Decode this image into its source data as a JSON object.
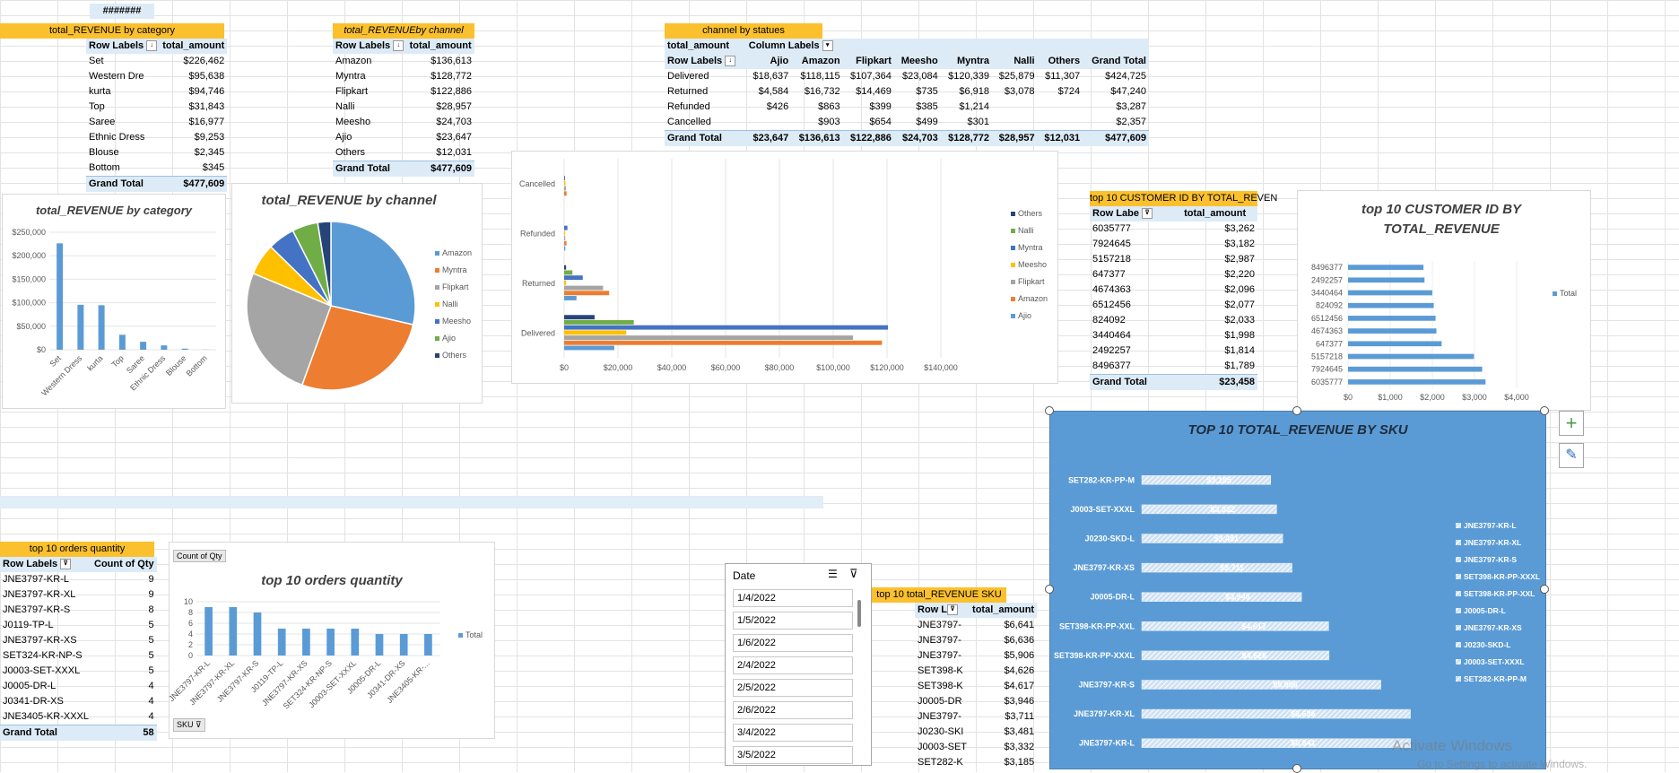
{
  "top_cell": "#######",
  "category_table": {
    "title": "total_REVENUE by category",
    "header_row_labels": "Row Labels",
    "header_value": "total_amount",
    "rows": [
      {
        "label": "Set",
        "value": "$226,462"
      },
      {
        "label": "Western Dre",
        "value": "$95,638"
      },
      {
        "label": "kurta",
        "value": "$94,746"
      },
      {
        "label": "Top",
        "value": "$31,843"
      },
      {
        "label": "Saree",
        "value": "$16,977"
      },
      {
        "label": "Ethnic Dress",
        "value": "$9,253"
      },
      {
        "label": "Blouse",
        "value": "$2,345"
      },
      {
        "label": "Bottom",
        "value": "$345"
      }
    ],
    "total_label": "Grand Total",
    "total_value": "$477,609"
  },
  "channel_table": {
    "title": "total_REVENUEby channel",
    "header_row_labels": "Row Labels",
    "header_value": "total_amount",
    "rows": [
      {
        "label": "Amazon",
        "value": "$136,613"
      },
      {
        "label": "Myntra",
        "value": "$128,772"
      },
      {
        "label": "Flipkart",
        "value": "$122,886"
      },
      {
        "label": "Nalli",
        "value": "$28,957"
      },
      {
        "label": "Meesho",
        "value": "$24,703"
      },
      {
        "label": "Ajio",
        "value": "$23,647"
      },
      {
        "label": "Others",
        "value": "$12,031"
      }
    ],
    "total_label": "Grand Total",
    "total_value": "$477,609"
  },
  "status_table": {
    "title": "channel  by statues",
    "corner": "total_amount",
    "col_labels": "Column Labels",
    "row_labels": "Row Labels",
    "columns": [
      "Ajio",
      "Amazon",
      "Flipkart",
      "Meesho",
      "Myntra",
      "Nalli",
      "Others",
      "Grand Total"
    ],
    "rows": [
      {
        "label": "Delivered",
        "values": [
          "$18,637",
          "$118,115",
          "$107,364",
          "$23,084",
          "$120,339",
          "$25,879",
          "$11,307",
          "$424,725"
        ]
      },
      {
        "label": "Returned",
        "values": [
          "$4,584",
          "$16,732",
          "$14,469",
          "$735",
          "$6,918",
          "$3,078",
          "$724",
          "$47,240"
        ]
      },
      {
        "label": "Refunded",
        "values": [
          "$426",
          "$863",
          "$399",
          "$385",
          "$1,214",
          "",
          "",
          "$3,287"
        ]
      },
      {
        "label": "Cancelled",
        "values": [
          "",
          "$903",
          "$654",
          "$499",
          "$301",
          "",
          "",
          "$2,357"
        ]
      }
    ],
    "total_label": "Grand Total",
    "total_values": [
      "$23,647",
      "$136,613",
      "$122,886",
      "$24,703",
      "$128,772",
      "$28,957",
      "$12,031",
      "$477,609"
    ]
  },
  "customer_table": {
    "title": "top 10 CUSTOMER ID BY TOTAL_REVEN",
    "header_row_labels": "Row Labe",
    "header_value": "total_amount",
    "rows": [
      {
        "label": "6035777",
        "value": "$3,262"
      },
      {
        "label": "7924645",
        "value": "$3,182"
      },
      {
        "label": "5157218",
        "value": "$2,987"
      },
      {
        "label": "647377",
        "value": "$2,220"
      },
      {
        "label": "4674363",
        "value": "$2,096"
      },
      {
        "label": "6512456",
        "value": "$2,077"
      },
      {
        "label": "824092",
        "value": "$2,033"
      },
      {
        "label": "3440464",
        "value": "$1,998"
      },
      {
        "label": "2492257",
        "value": "$1,814"
      },
      {
        "label": "8496377",
        "value": "$1,789"
      }
    ],
    "total_label": "Grand Total",
    "total_value": "$23,458"
  },
  "orders_table": {
    "title": "top 10 orders quantity",
    "header_row_labels": "Row Labels",
    "header_value": "Count of Qty",
    "rows": [
      {
        "label": "JNE3797-KR-L",
        "value": "9"
      },
      {
        "label": "JNE3797-KR-XL",
        "value": "9"
      },
      {
        "label": "JNE3797-KR-S",
        "value": "8"
      },
      {
        "label": "J0119-TP-L",
        "value": "5"
      },
      {
        "label": "JNE3797-KR-XS",
        "value": "5"
      },
      {
        "label": "SET324-KR-NP-S",
        "value": "5"
      },
      {
        "label": "J0003-SET-XXXL",
        "value": "5"
      },
      {
        "label": "J0005-DR-L",
        "value": "4"
      },
      {
        "label": "J0341-DR-XS",
        "value": "4"
      },
      {
        "label": "JNE3405-KR-XXXL",
        "value": "4"
      }
    ],
    "total_label": "Grand Total",
    "total_value": "58"
  },
  "sku_table": {
    "title": "top 10 total_REVENUE SKU",
    "header_row_labels": "Row L",
    "header_value": "total_amount",
    "rows": [
      {
        "label": "JNE3797-",
        "value": "$6,641"
      },
      {
        "label": "JNE3797-",
        "value": "$6,636"
      },
      {
        "label": "JNE3797-",
        "value": "$5,906"
      },
      {
        "label": "SET398-K",
        "value": "$4,626"
      },
      {
        "label": "SET398-K",
        "value": "$4,617"
      },
      {
        "label": "J0005-DR",
        "value": "$3,946"
      },
      {
        "label": "JNE3797-",
        "value": "$3,711"
      },
      {
        "label": "J0230-SKI",
        "value": "$3,481"
      },
      {
        "label": "J0003-SET",
        "value": "$3,332"
      },
      {
        "label": "SET282-K",
        "value": "$3,185"
      }
    ]
  },
  "slicer": {
    "title": "Date",
    "items": [
      "1/4/2022",
      "1/5/2022",
      "1/6/2022",
      "2/4/2022",
      "2/5/2022",
      "2/6/2022",
      "3/4/2022",
      "3/5/2022"
    ]
  },
  "watermark": {
    "line1": "Activate Windows",
    "line2": "Go to Settings to activate Windows."
  },
  "chart_data": [
    {
      "type": "bar",
      "title": "total_REVENUE by category",
      "categories": [
        "Set",
        "Western Dress",
        "kurta",
        "Top",
        "Saree",
        "Ethnic Dress",
        "Blouse",
        "Bottom"
      ],
      "values": [
        226462,
        95638,
        94746,
        31843,
        16977,
        9253,
        2345,
        345
      ],
      "yticks": [
        "$0",
        "$50,000",
        "$100,000",
        "$150,000",
        "$200,000",
        "$250,000"
      ],
      "ylim": [
        0,
        250000
      ],
      "color": "#5b9bd5"
    },
    {
      "type": "pie",
      "title": "total_REVENUE by channel",
      "categories": [
        "Amazon",
        "Myntra",
        "Flipkart",
        "Nalli",
        "Meesho",
        "Ajio",
        "Others"
      ],
      "values": [
        136613,
        128772,
        122886,
        28957,
        24703,
        23647,
        12031
      ],
      "colors": [
        "#5b9bd5",
        "#ed7d31",
        "#a5a5a5",
        "#ffc000",
        "#4472c4",
        "#70ad47",
        "#264478"
      ],
      "legend": "right"
    },
    {
      "type": "bar",
      "orientation": "horizontal",
      "categories": [
        "Delivered",
        "Returned",
        "Refunded",
        "Cancelled"
      ],
      "series": [
        {
          "name": "Ajio",
          "color": "#5b9bd5",
          "values": [
            18637,
            4584,
            426,
            0
          ]
        },
        {
          "name": "Amazon",
          "color": "#ed7d31",
          "values": [
            118115,
            16732,
            863,
            903
          ]
        },
        {
          "name": "Flipkart",
          "color": "#a5a5a5",
          "values": [
            107364,
            14469,
            399,
            654
          ]
        },
        {
          "name": "Meesho",
          "color": "#ffc000",
          "values": [
            23084,
            735,
            385,
            499
          ]
        },
        {
          "name": "Myntra",
          "color": "#4472c4",
          "values": [
            120339,
            6918,
            1214,
            301
          ]
        },
        {
          "name": "Nalli",
          "color": "#70ad47",
          "values": [
            25879,
            3078,
            0,
            0
          ]
        },
        {
          "name": "Others",
          "color": "#264478",
          "values": [
            11307,
            724,
            0,
            0
          ]
        }
      ],
      "xticks": [
        "$0",
        "$20,000",
        "$40,000",
        "$60,000",
        "$80,000",
        "$100,000",
        "$120,000",
        "$140,000"
      ],
      "xlim": [
        0,
        140000
      ],
      "legend": "right"
    },
    {
      "type": "bar",
      "orientation": "horizontal",
      "title": "top 10 CUSTOMER ID BY TOTAL_REVENUE",
      "categories": [
        "8496377",
        "2492257",
        "3440464",
        "824092",
        "6512456",
        "4674363",
        "647377",
        "5157218",
        "7924645",
        "6035777"
      ],
      "values": [
        1789,
        1814,
        1998,
        2033,
        2077,
        2096,
        2220,
        2987,
        3182,
        3262
      ],
      "xticks": [
        "$0",
        "$1,000",
        "$2,000",
        "$3,000",
        "$4,000"
      ],
      "xlim": [
        0,
        4000
      ],
      "series_name": "Total",
      "color": "#5b9bd5"
    },
    {
      "type": "bar",
      "title": "top 10 orders quantity",
      "categories": [
        "JNE3797-KR-L",
        "JNE3797-KR-XL",
        "JNE3797-KR-S",
        "J0119-TP-L",
        "JNE3797-KR-XS",
        "SET324-KR-NP-S",
        "J0003-SET-XXXL",
        "J0005-DR-L",
        "J0341-DR-XS",
        "JNE3405-KR-..."
      ],
      "values": [
        9,
        9,
        8,
        5,
        5,
        5,
        5,
        4,
        4,
        4
      ],
      "yticks": [
        "0",
        "2",
        "4",
        "6",
        "8",
        "10"
      ],
      "ylim": [
        0,
        10
      ],
      "series_name": "Total",
      "field_button": "Count of Qty",
      "axis_button": "SKU",
      "color": "#5b9bd5"
    },
    {
      "type": "bar",
      "orientation": "horizontal",
      "title": "TOP 10 TOTAL_REVENUE BY SKU",
      "categories": [
        "SET282-KR-PP-M",
        "J0003-SET-XXXL",
        "J0230-SKD-L",
        "JNE3797-KR-XS",
        "J0005-DR-L",
        "SET398-KR-PP-XXL",
        "SET398-KR-PP-XXXL",
        "JNE3797-KR-S",
        "JNE3797-KR-XL",
        "JNE3797-KR-L"
      ],
      "values": [
        3185,
        3332,
        3481,
        3711,
        3946,
        4617,
        4626,
        5906,
        6636,
        6641
      ],
      "data_labels": [
        "$3,185",
        "$3,332",
        "$3,481",
        "$3,711",
        "$3,946",
        "$4,617",
        "$4,626",
        "$5,906",
        "$6,636",
        "$6,641"
      ],
      "legend_items": [
        "JNE3797-KR-L",
        "JNE3797-KR-XL",
        "JNE3797-KR-S",
        "SET398-KR-PP-XXXL",
        "SET398-KR-PP-XXL",
        "J0005-DR-L",
        "JNE3797-KR-XS",
        "J0230-SKD-L",
        "J0003-SET-XXXL",
        "SET282-KR-PP-M"
      ],
      "legend": "right"
    }
  ]
}
